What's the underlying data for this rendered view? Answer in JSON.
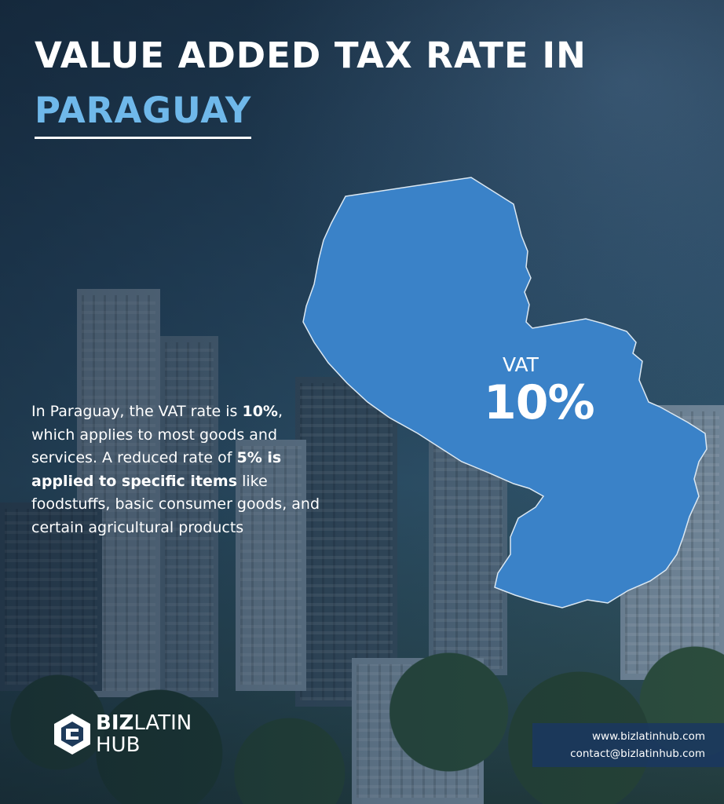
{
  "title": {
    "line1": "VALUE ADDED TAX RATE IN",
    "line2": "PARAGUAY"
  },
  "map": {
    "country": "Paraguay",
    "vat_label": "VAT",
    "vat_value": "10%",
    "fill_color": "#3a82c8",
    "stroke_color": "#dbe8f3"
  },
  "body": {
    "p1": "In Paraguay, the VAT rate is ",
    "b1": "10%",
    "p2": ", which applies to most goods and services. A reduced rate of ",
    "b2": "5% is applied to specific items",
    "p3": " like foodstuffs, basic consumer goods, and certain agricultural products"
  },
  "logo": {
    "word1_bold": "BIZ",
    "word1_thin": "LATIN",
    "word2": "HUB",
    "icon": "bizlatinhub-logo-icon"
  },
  "contact": {
    "website": "www.bizlatinhub.com",
    "email": "contact@bizlatinhub.com"
  },
  "colors": {
    "title_white": "#ffffff",
    "title_accent": "#6fb8ea",
    "contact_box": "#1a3760"
  }
}
